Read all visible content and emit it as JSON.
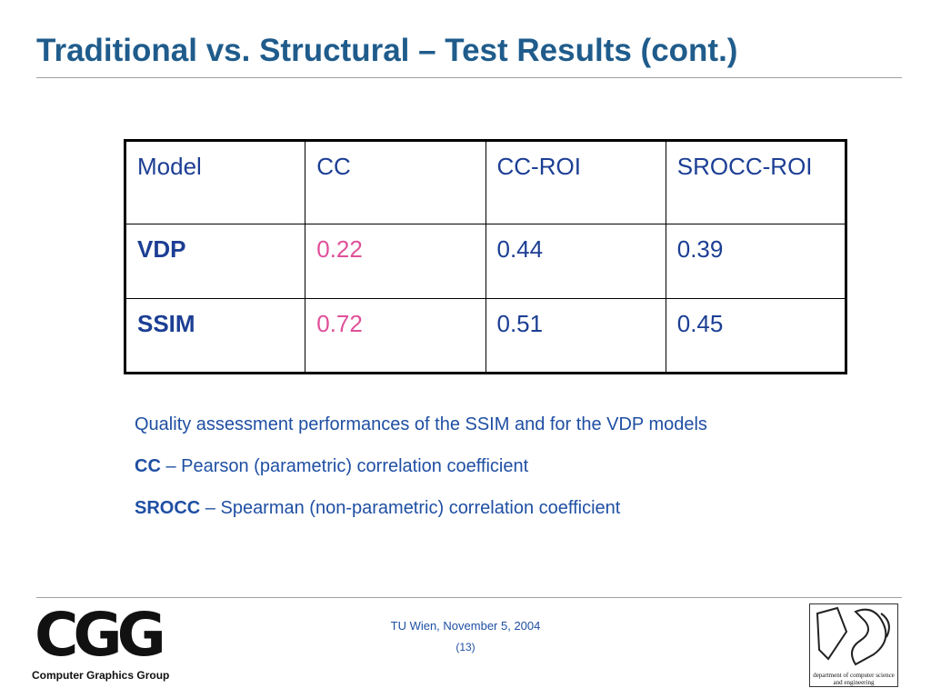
{
  "title": "Traditional vs. Structural – Test Results (cont.)",
  "table": {
    "header": [
      "Model",
      "CC",
      "CC-ROI",
      "SROCC-ROI"
    ],
    "rows": [
      [
        "VDP",
        0.22,
        0.44,
        0.39
      ],
      [
        "SSIM",
        0.72,
        0.51,
        0.45
      ]
    ]
  },
  "notes": {
    "caption": "Quality assessment performances of the SSIM and for the VDP models",
    "definitions": [
      {
        "term": "CC",
        "text": "– Pearson (parametric) correlation coefficient"
      },
      {
        "term": "SROCC",
        "text": "– Spearman (non-parametric) correlation coefficient"
      }
    ]
  },
  "footer": {
    "logo": "CGG",
    "group": "Computer Graphics Group",
    "date": "TU Wien, November 5, 2004",
    "page": "(13)",
    "department": "department of computer science and engineering"
  }
}
